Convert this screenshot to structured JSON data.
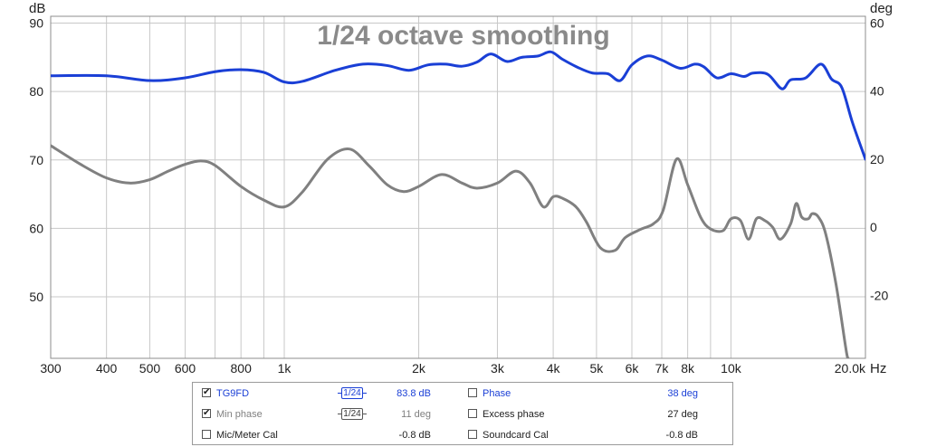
{
  "chart_data": {
    "type": "line",
    "title": "1/24 octave smoothing",
    "x_unit": "Hz",
    "x_scale": "log",
    "xlim": [
      300,
      20000
    ],
    "left_axis": {
      "unit": "dB",
      "ylim": [
        41,
        91
      ],
      "ticks": [
        90,
        80,
        70,
        60,
        50
      ]
    },
    "right_axis": {
      "unit": "deg",
      "ylim": [
        -38.5,
        62
      ],
      "ticks": [
        60,
        40,
        20,
        0,
        -20
      ]
    },
    "x_tick_labels": [
      {
        "v": 300,
        "t": "300"
      },
      {
        "v": 400,
        "t": "400"
      },
      {
        "v": 500,
        "t": "500"
      },
      {
        "v": 600,
        "t": "600"
      },
      {
        "v": 800,
        "t": "800"
      },
      {
        "v": 1000,
        "t": "1k"
      },
      {
        "v": 2000,
        "t": "2k"
      },
      {
        "v": 3000,
        "t": "3k"
      },
      {
        "v": 4000,
        "t": "4k"
      },
      {
        "v": 5000,
        "t": "5k"
      },
      {
        "v": 6000,
        "t": "6k"
      },
      {
        "v": 7000,
        "t": "7k"
      },
      {
        "v": 8000,
        "t": "8k"
      },
      {
        "v": 10000,
        "t": "10k"
      },
      {
        "v": 20000,
        "t": "20.0k"
      }
    ],
    "grid": true,
    "series": [
      {
        "name": "TG9FD",
        "axis": "left",
        "color": "#1a3fd6",
        "points": [
          [
            300,
            82.3
          ],
          [
            400,
            82.3
          ],
          [
            500,
            81.6
          ],
          [
            600,
            82.0
          ],
          [
            700,
            82.9
          ],
          [
            800,
            83.2
          ],
          [
            900,
            82.8
          ],
          [
            1000,
            81.4
          ],
          [
            1100,
            81.5
          ],
          [
            1300,
            83.1
          ],
          [
            1500,
            84.0
          ],
          [
            1700,
            83.8
          ],
          [
            1900,
            83.1
          ],
          [
            2100,
            83.9
          ],
          [
            2300,
            84.0
          ],
          [
            2500,
            83.7
          ],
          [
            2700,
            84.3
          ],
          [
            2900,
            85.5
          ],
          [
            3150,
            84.4
          ],
          [
            3400,
            85.0
          ],
          [
            3700,
            85.2
          ],
          [
            3950,
            85.8
          ],
          [
            4200,
            84.7
          ],
          [
            4550,
            83.5
          ],
          [
            4900,
            82.7
          ],
          [
            5300,
            82.6
          ],
          [
            5650,
            81.6
          ],
          [
            6000,
            83.9
          ],
          [
            6500,
            85.2
          ],
          [
            7000,
            84.6
          ],
          [
            7700,
            83.4
          ],
          [
            8300,
            84.0
          ],
          [
            8700,
            83.6
          ],
          [
            9300,
            82.0
          ],
          [
            10000,
            82.6
          ],
          [
            10700,
            82.2
          ],
          [
            11200,
            82.7
          ],
          [
            12100,
            82.5
          ],
          [
            13000,
            80.4
          ],
          [
            13600,
            81.7
          ],
          [
            14700,
            82.0
          ],
          [
            15900,
            84.0
          ],
          [
            16800,
            81.8
          ],
          [
            17700,
            80.6
          ],
          [
            18700,
            75.5
          ],
          [
            20000,
            70.1
          ]
        ]
      },
      {
        "name": "Min phase",
        "axis": "right",
        "color": "#808080",
        "points": [
          [
            300,
            24.0
          ],
          [
            350,
            18.5
          ],
          [
            400,
            14.5
          ],
          [
            450,
            13.0
          ],
          [
            500,
            14.0
          ],
          [
            550,
            16.5
          ],
          [
            600,
            18.5
          ],
          [
            650,
            19.5
          ],
          [
            700,
            18.2
          ],
          [
            800,
            12.0
          ],
          [
            900,
            8.0
          ],
          [
            1000,
            6.0
          ],
          [
            1100,
            10.5
          ],
          [
            1250,
            20.0
          ],
          [
            1400,
            23.0
          ],
          [
            1550,
            18.0
          ],
          [
            1700,
            12.5
          ],
          [
            1850,
            10.5
          ],
          [
            2000,
            12.0
          ],
          [
            2250,
            15.5
          ],
          [
            2500,
            13.0
          ],
          [
            2700,
            11.5
          ],
          [
            3000,
            13.0
          ],
          [
            3300,
            16.5
          ],
          [
            3550,
            13.0
          ],
          [
            3800,
            6.0
          ],
          [
            4000,
            9.0
          ],
          [
            4200,
            8.5
          ],
          [
            4500,
            6.0
          ],
          [
            4750,
            1.5
          ],
          [
            5100,
            -6.0
          ],
          [
            5500,
            -6.8
          ],
          [
            5800,
            -3.0
          ],
          [
            6300,
            -0.5
          ],
          [
            6700,
            1.0
          ],
          [
            7050,
            5.0
          ],
          [
            7550,
            20.0
          ],
          [
            8000,
            12.5
          ],
          [
            8550,
            3.0
          ],
          [
            9000,
            -0.5
          ],
          [
            9600,
            -1.0
          ],
          [
            10000,
            2.5
          ],
          [
            10500,
            2.0
          ],
          [
            10950,
            -3.5
          ],
          [
            11400,
            2.5
          ],
          [
            11900,
            2.0
          ],
          [
            12400,
            0.0
          ],
          [
            12900,
            -3.5
          ],
          [
            13600,
            1.0
          ],
          [
            14000,
            7.0
          ],
          [
            14400,
            3.0
          ],
          [
            14900,
            2.5
          ],
          [
            15200,
            4.0
          ],
          [
            15700,
            3.0
          ],
          [
            16300,
            -2.0
          ],
          [
            17200,
            -17.0
          ],
          [
            18100,
            -36.0
          ],
          [
            18300,
            -38.5
          ]
        ]
      }
    ]
  },
  "legend": {
    "rows": [
      {
        "left": {
          "checked": true,
          "label": "TG9FD",
          "smoothing": "1/24",
          "value": "83.8 dB",
          "color": "#1a3fd6"
        },
        "right": {
          "checked": false,
          "label": "Phase",
          "value": "38 deg",
          "color": "#1a3fd6"
        }
      },
      {
        "left": {
          "checked": true,
          "label": "Min phase",
          "smoothing": "1/24",
          "value": "11 deg",
          "color": "#808080"
        },
        "right": {
          "checked": false,
          "label": "Excess phase",
          "value": "27 deg",
          "color": "#222222"
        }
      },
      {
        "left": {
          "checked": false,
          "label": "Mic/Meter Cal",
          "value": "-0.8 dB",
          "color": "#222222"
        },
        "right": {
          "checked": false,
          "label": "Soundcard Cal",
          "value": "-0.8 dB",
          "color": "#222222"
        }
      }
    ]
  }
}
